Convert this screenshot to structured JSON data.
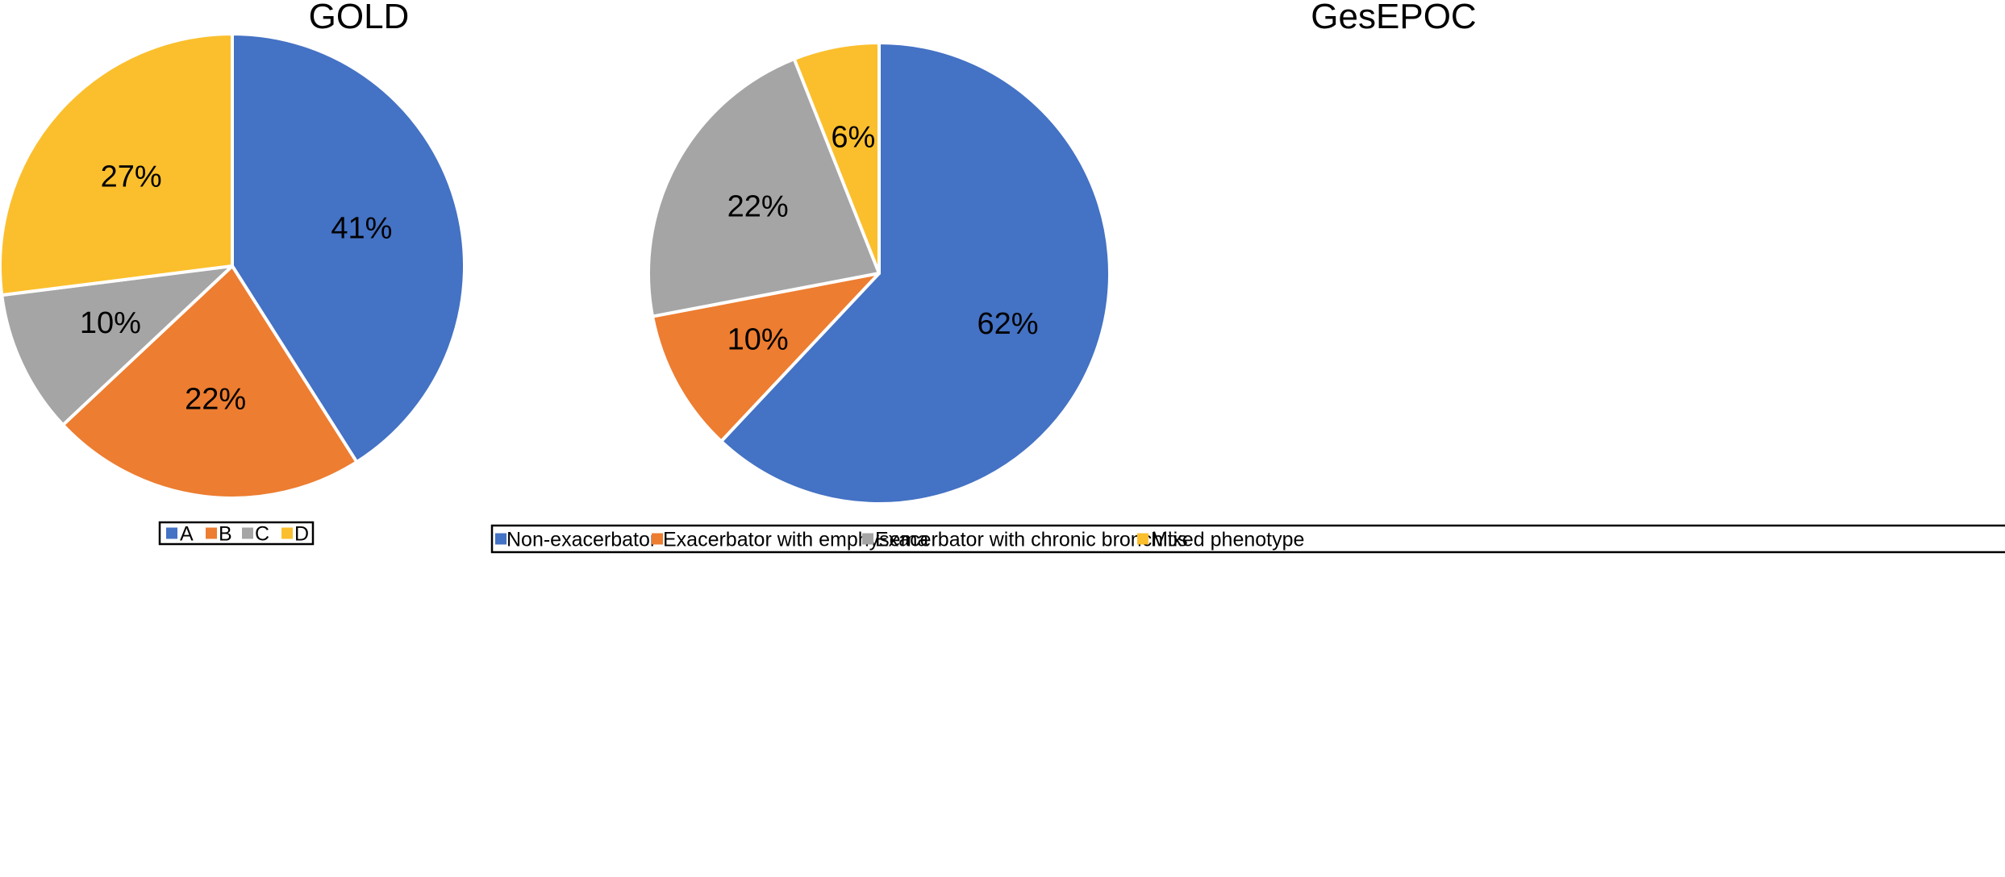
{
  "chart_data": [
    {
      "type": "pie",
      "title": "GOLD",
      "categories": [
        "A",
        "B",
        "C",
        "D"
      ],
      "values": [
        41,
        22,
        10,
        27
      ],
      "value_labels": [
        "41%",
        "22%",
        "10%",
        "27%"
      ],
      "colors": [
        "#4472C4",
        "#ED7D31",
        "#A5A5A5",
        "#FBBF2D"
      ],
      "start": "12 o'clock",
      "direction": "clockwise",
      "legend_position": "bottom"
    },
    {
      "type": "pie",
      "title": "GesEPOC",
      "categories": [
        "Non-exacerbator",
        "Exacerbator with emphysema",
        "Exacerbator with chronic bronchitis",
        "Mixed phenotype"
      ],
      "values": [
        62,
        10,
        22,
        6
      ],
      "value_labels": [
        "62%",
        "10%",
        "22%",
        "6%"
      ],
      "colors": [
        "#4472C4",
        "#ED7D31",
        "#A5A5A5",
        "#FBBF2D"
      ],
      "start": "12 o'clock",
      "direction": "clockwise",
      "legend_position": "bottom"
    }
  ]
}
